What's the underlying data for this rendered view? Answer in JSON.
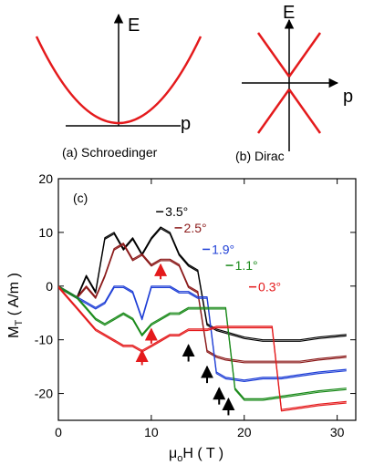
{
  "panel_a": {
    "caption": "(a) Schroedinger",
    "energy_label": "E",
    "momentum_label": "p",
    "curve_color": "#e41a1c"
  },
  "panel_b": {
    "caption": "(b) Dirac",
    "energy_label": "E",
    "momentum_label": "p",
    "curve_color": "#e41a1c"
  },
  "chart_data": {
    "type": "line",
    "panel_label": "(c)",
    "xlabel_main": "μ",
    "xlabel_sub": "o",
    "xlabel_rest": "H ( T )",
    "ylabel_main": "M",
    "ylabel_sub": "T",
    "ylabel_rest": " ( A/m )",
    "xlim": [
      0,
      32
    ],
    "ylim": [
      -25,
      20
    ],
    "xticks": [
      0,
      10,
      20,
      30
    ],
    "yticks": [
      -20,
      -10,
      0,
      10,
      20
    ],
    "series": [
      {
        "name": "3.5°",
        "color": "#000000",
        "x": [
          0,
          1,
          2,
          3,
          4,
          5,
          6,
          7,
          8,
          9,
          10,
          11,
          12,
          13,
          14,
          15,
          16,
          17,
          18,
          20,
          22,
          24,
          26,
          28,
          31
        ],
        "y": [
          0,
          -1,
          -2,
          2,
          -1,
          9,
          10,
          7,
          9,
          6,
          9,
          11,
          10,
          6,
          4,
          3,
          -7,
          -8,
          -8.5,
          -9.5,
          -10,
          -10,
          -10,
          -9.5,
          -9
        ]
      },
      {
        "name": "2.5°",
        "color": "#8b1a1a",
        "x": [
          0,
          1,
          2,
          3,
          4,
          5,
          6,
          7,
          8,
          9,
          10,
          11,
          12,
          13,
          14,
          15,
          16,
          17,
          18,
          20,
          22,
          24,
          26,
          28,
          31
        ],
        "y": [
          0,
          -1,
          -2,
          0,
          -2,
          2,
          7,
          8,
          5,
          6,
          4,
          5,
          5,
          4,
          0,
          -1,
          -12,
          -13,
          -13.5,
          -14,
          -14,
          -14,
          -14,
          -13.5,
          -13
        ]
      },
      {
        "name": "1.9°",
        "color": "#1f3fd6",
        "x": [
          0,
          1,
          2,
          3,
          4,
          5,
          6,
          7,
          8,
          9,
          10,
          11,
          12,
          13,
          14,
          15,
          16,
          17,
          18,
          20,
          22,
          24,
          26,
          28,
          31
        ],
        "y": [
          0,
          -1,
          -2,
          -3,
          -4,
          -3,
          0,
          0,
          -1,
          -6,
          0,
          0,
          0,
          -1,
          -1,
          -2,
          -2,
          -16,
          -17,
          -17.5,
          -17,
          -17,
          -16.5,
          -16,
          -15.5
        ]
      },
      {
        "name": "1.1°",
        "color": "#1a8a1a",
        "x": [
          0,
          1,
          2,
          3,
          4,
          5,
          6,
          7,
          8,
          9,
          10,
          11,
          12,
          13,
          14,
          15,
          16,
          17,
          18,
          19,
          20,
          22,
          24,
          26,
          28,
          31
        ],
        "y": [
          0,
          -1,
          -2,
          -4,
          -6,
          -7,
          -6,
          -5,
          -6,
          -9,
          -7,
          -6,
          -5,
          -5,
          -4,
          -4,
          -4,
          -4,
          -4,
          -19,
          -21,
          -21,
          -20.5,
          -20,
          -19.5,
          -19
        ]
      },
      {
        "name": "0.3°",
        "color": "#e41a1c",
        "x": [
          0,
          1,
          2,
          3,
          4,
          5,
          6,
          7,
          8,
          9,
          10,
          11,
          12,
          13,
          14,
          15,
          16,
          17,
          18,
          19,
          20,
          21,
          22,
          23,
          24,
          26,
          28,
          31
        ],
        "y": [
          0,
          -2,
          -4,
          -6,
          -8,
          -9,
          -10,
          -11,
          -11,
          -12,
          -11,
          -10,
          -9,
          -9,
          -8,
          -8,
          -8,
          -7.5,
          -7.5,
          -7.5,
          -7.5,
          -7.5,
          -7.5,
          -7.5,
          -23,
          -22.5,
          -22,
          -21.5
        ]
      }
    ],
    "annotations": {
      "red_arrows_at": [
        [
          11,
          4
        ],
        [
          10,
          -8
        ],
        [
          9,
          -12
        ]
      ],
      "black_arrows_at": [
        [
          14,
          -11
        ],
        [
          16,
          -15
        ],
        [
          17.3,
          -19
        ],
        [
          18.3,
          -21
        ]
      ]
    }
  }
}
